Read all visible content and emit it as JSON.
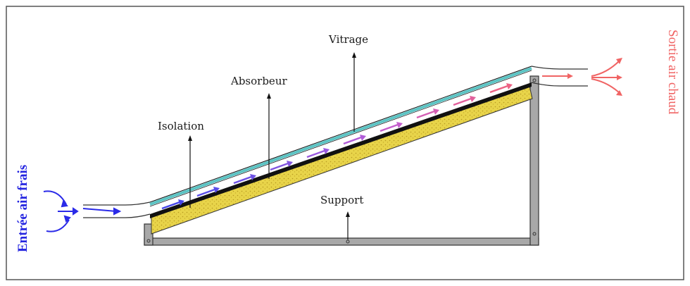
{
  "labels": {
    "vitrage": "Vitrage",
    "absorbeur": "Absorbeur",
    "isolation": "Isolation",
    "support": "Support",
    "entree": "Entrée air frais",
    "sortie": "Sortie air chaud"
  },
  "colors": {
    "frame_border": "#4a4a4a",
    "support_steel": "#a8a8a8",
    "glazing": "#5cc4c4",
    "absorber": "#111111",
    "insulation": "#e8d44a",
    "cold_air": "#2a2ae8",
    "hot_air": "#f06464",
    "air_flow_mid": "#9a5ae0"
  }
}
